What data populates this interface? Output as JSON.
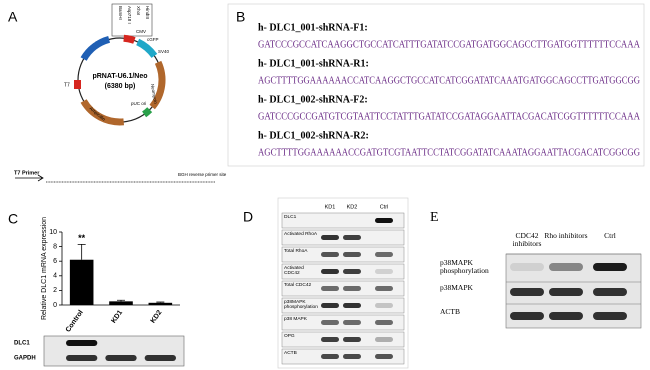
{
  "panel_a": {
    "letter": "A",
    "plasmid": "pRNAT-U6.1/Neo",
    "size": "(6380 bp)",
    "features": {
      "u6": "U6 Promoter",
      "cmv": "CMV",
      "cgfp": "cGFP",
      "sv40": "SV40",
      "neo": "Neomycin",
      "puc": "pUC ori",
      "amp": "Ampicillin",
      "t7": "T7"
    },
    "sites": [
      "BamHI",
      "Asp718 I",
      "XhoI",
      "HindIII"
    ],
    "t7_primer": "T7 Primer",
    "bgh": "BGH reverse primer site"
  },
  "panel_b": {
    "letter": "B",
    "oligos": [
      {
        "name": "h- DLC1_001-shRNA-F1:",
        "sequence": "GATCCCGCCATCAAGGCTGCCATCATTTGATATCCGATGATGGCAGCCTTGATGGTTTTTTCCAAA"
      },
      {
        "name": "h- DLC1_001-shRNA-R1:",
        "sequence": "AGCTTTTGGAAAAAACCATCAAGGCTGCCATCATCGGATATCAAATGATGGCAGCCTTGATGGCGG"
      },
      {
        "name": "h- DLC1_002-shRNA-F2:",
        "sequence": "GATCCCGCCGATGTCGTAATTCCTATTTGATATCCGATAGGAATTACGACATCGGTTTTTTCCAAA"
      },
      {
        "name": "h- DLC1_002-shRNA-R2:",
        "sequence": "AGCTTTTGGAAAAAACCGATGTCGTAATTCCTATCGGATATCAAATAGGAATTACGACATCGGCGG"
      }
    ]
  },
  "chart_data": {
    "type": "bar",
    "letter": "C",
    "y_label": "Relative DLC1 mRNA expression",
    "categories": [
      "Control",
      "KD1",
      "KD2"
    ],
    "values": [
      6.2,
      0.5,
      0.3
    ],
    "errors": [
      2.1,
      0.15,
      0.1
    ],
    "color": "#000000",
    "ylim": [
      0,
      10
    ],
    "yticks": [
      0,
      2,
      4,
      6,
      8,
      10
    ],
    "annotation": {
      "text": "**",
      "category": 0
    },
    "blot_rows": [
      "DLC1",
      "GAPDH"
    ]
  },
  "panel_d": {
    "letter": "D",
    "lanes": [
      "KD1",
      "KD2",
      "Ctrl"
    ],
    "rows": [
      "DLC1",
      "Activated RhoA",
      "Total RhoA",
      "Activated CDC42",
      "Total CDC42",
      "p38MAPK phosphorylation",
      "p38 MAPK",
      "OPG",
      "ACTB"
    ]
  },
  "panel_e": {
    "letter": "E",
    "lanes": [
      "CDC42 inhibitors",
      "Rho inhibitors",
      "Ctrl"
    ],
    "rows": [
      "p38MAPK phosphorylation",
      "p38MAPK",
      "ACTB"
    ]
  }
}
